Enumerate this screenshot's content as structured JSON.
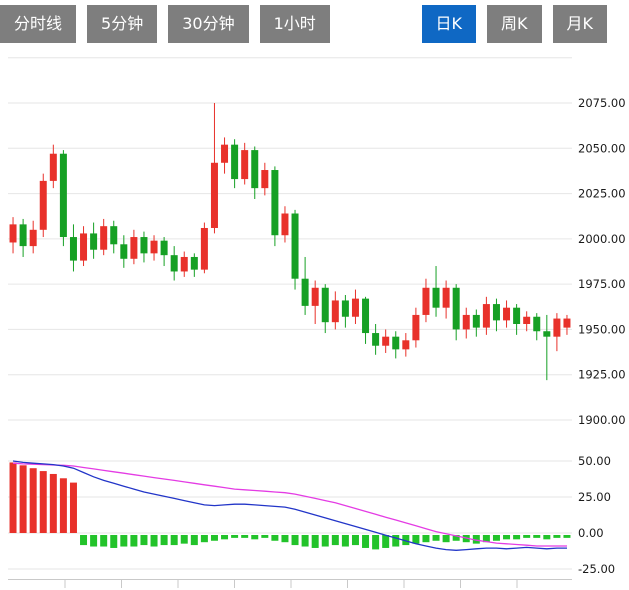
{
  "toolbar": {
    "active_color": "#0f68c4",
    "inactive_color": "#7e7e7e",
    "tabs": [
      {
        "id": "timeline",
        "label": "分时线",
        "active": false,
        "push": false
      },
      {
        "id": "5min",
        "label": "5分钟",
        "active": false,
        "push": false
      },
      {
        "id": "30min",
        "label": "30分钟",
        "active": false,
        "push": false
      },
      {
        "id": "1hour",
        "label": "1小时",
        "active": false,
        "push": false
      },
      {
        "id": "daily-k",
        "label": "日K",
        "active": true,
        "push": true
      },
      {
        "id": "weekly-k",
        "label": "周K",
        "active": false,
        "push": false
      },
      {
        "id": "monthly-k",
        "label": "月K",
        "active": false,
        "push": false
      }
    ]
  },
  "chart_data": [
    {
      "type": "candlestick",
      "panel": "price",
      "title": "",
      "xlabel": "",
      "ylabel": "",
      "ylim": [
        1893,
        2100
      ],
      "yticks_labeled": [
        2075,
        2050,
        2025,
        2000,
        1975,
        1950,
        1925,
        1900
      ],
      "yticks_unlabeled": [
        2100
      ],
      "legend": "none",
      "grid": true,
      "up_color": "#e8312a",
      "down_color": "#16a024",
      "grid_color": "#e6e6e6",
      "candles_ohlc": [
        [
          1998,
          2012,
          1992,
          2008
        ],
        [
          2008,
          2011,
          1990,
          1996
        ],
        [
          1996,
          2010,
          1992,
          2005
        ],
        [
          2005,
          2036,
          2001,
          2032
        ],
        [
          2032,
          2052,
          2028,
          2047
        ],
        [
          2047,
          2049,
          1996,
          2001
        ],
        [
          2001,
          2008,
          1982,
          1988
        ],
        [
          1988,
          2007,
          1985,
          2003
        ],
        [
          2003,
          2009,
          1989,
          1994
        ],
        [
          1994,
          2011,
          1991,
          2007
        ],
        [
          2007,
          2010,
          1992,
          1997
        ],
        [
          1997,
          2002,
          1984,
          1989
        ],
        [
          1989,
          2005,
          1986,
          2001
        ],
        [
          2001,
          2004,
          1987,
          1992
        ],
        [
          1992,
          2002,
          1988,
          1999
        ],
        [
          1999,
          2001,
          1985,
          1991
        ],
        [
          1991,
          1996,
          1977,
          1982
        ],
        [
          1982,
          1993,
          1979,
          1990
        ],
        [
          1990,
          1992,
          1979,
          1983
        ],
        [
          1983,
          2009,
          1981,
          2006
        ],
        [
          2006,
          2075,
          2003,
          2042
        ],
        [
          2042,
          2056,
          2036,
          2052
        ],
        [
          2052,
          2055,
          2028,
          2033
        ],
        [
          2033,
          2053,
          2030,
          2049
        ],
        [
          2049,
          2051,
          2022,
          2028
        ],
        [
          2028,
          2042,
          2024,
          2038
        ],
        [
          2038,
          2040,
          1996,
          2002
        ],
        [
          2002,
          2018,
          1998,
          2014
        ],
        [
          2014,
          2016,
          1972,
          1978
        ],
        [
          1978,
          1990,
          1958,
          1963
        ],
        [
          1963,
          1977,
          1953,
          1973
        ],
        [
          1973,
          1975,
          1948,
          1954
        ],
        [
          1954,
          1971,
          1950,
          1966
        ],
        [
          1966,
          1969,
          1951,
          1957
        ],
        [
          1957,
          1972,
          1953,
          1967
        ],
        [
          1967,
          1968,
          1942,
          1948
        ],
        [
          1948,
          1953,
          1936,
          1941
        ],
        [
          1941,
          1950,
          1937,
          1946
        ],
        [
          1946,
          1949,
          1934,
          1939
        ],
        [
          1939,
          1948,
          1935,
          1944
        ],
        [
          1944,
          1962,
          1940,
          1958
        ],
        [
          1958,
          1978,
          1954,
          1973
        ],
        [
          1973,
          1985,
          1957,
          1962
        ],
        [
          1962,
          1977,
          1956,
          1973
        ],
        [
          1973,
          1975,
          1944,
          1950
        ],
        [
          1950,
          1962,
          1945,
          1958
        ],
        [
          1958,
          1961,
          1946,
          1951
        ],
        [
          1951,
          1968,
          1947,
          1964
        ],
        [
          1964,
          1967,
          1949,
          1955
        ],
        [
          1955,
          1966,
          1951,
          1962
        ],
        [
          1962,
          1964,
          1947,
          1953
        ],
        [
          1953,
          1960,
          1949,
          1957
        ],
        [
          1957,
          1959,
          1944,
          1949
        ],
        [
          1949,
          1958,
          1922,
          1946
        ],
        [
          1946,
          1959,
          1938,
          1956
        ],
        [
          1951,
          1958,
          1947,
          1956
        ]
      ]
    },
    {
      "type": "macd",
      "panel": "indicator",
      "ylim": [
        -32,
        58
      ],
      "yticks_labeled": [
        50,
        25,
        0,
        -25
      ],
      "grid": true,
      "hist_up_color": "#e8312a",
      "hist_down_color": "#22c32a",
      "dif_color": "#2235c8",
      "dea_color": "#e43ce4",
      "grid_color": "#e6e6e6",
      "axis_color": "#c9c9c9",
      "histogram": [
        49,
        47,
        45,
        43,
        41,
        38,
        35,
        -7,
        -8,
        -8,
        -9,
        -8,
        -8,
        -7,
        -8,
        -7,
        -7,
        -6,
        -7,
        -5,
        -4,
        -3,
        -2,
        -2,
        -3,
        -2,
        -4,
        -5,
        -7,
        -8,
        -9,
        -8,
        -7,
        -8,
        -7,
        -9,
        -10,
        -9,
        -8,
        -7,
        -6,
        -5,
        -4,
        -5,
        -4,
        -5,
        -6,
        -5,
        -4,
        -3,
        -3,
        -2,
        -2,
        -3,
        -2,
        -2
      ],
      "dif": [
        50,
        49,
        48.5,
        48,
        47.5,
        46.5,
        45,
        42,
        39,
        36.5,
        34.5,
        32.5,
        30.5,
        28.5,
        27,
        25.5,
        24,
        22.5,
        21,
        19.5,
        19,
        19.5,
        20,
        20,
        19.5,
        19,
        18.5,
        18,
        16.5,
        14.5,
        12.5,
        10.5,
        8.5,
        6.5,
        4.5,
        2.5,
        0.5,
        -1.5,
        -3.5,
        -5.5,
        -7.5,
        -9,
        -10.5,
        -11.5,
        -12,
        -11.5,
        -11,
        -10.5,
        -10.5,
        -11,
        -10.5,
        -10,
        -10.5,
        -11,
        -10.5,
        -10.5
      ],
      "dea": [
        48.5,
        48,
        47.8,
        47.5,
        47.2,
        47,
        46.5,
        45.5,
        44.5,
        43.5,
        42.5,
        41.5,
        40.5,
        39.5,
        38.5,
        37.5,
        36.5,
        35.5,
        34.5,
        33.5,
        32.5,
        31.5,
        30.5,
        30,
        29.5,
        29,
        28.5,
        28,
        27,
        25.5,
        24,
        22.5,
        21,
        19,
        17,
        15,
        13,
        11,
        9,
        7,
        5,
        3,
        1,
        -0.5,
        -2,
        -3.5,
        -5,
        -6,
        -7,
        -7.5,
        -8,
        -8.5,
        -9,
        -9,
        -9,
        -9
      ],
      "x_tick_count": 9
    }
  ]
}
